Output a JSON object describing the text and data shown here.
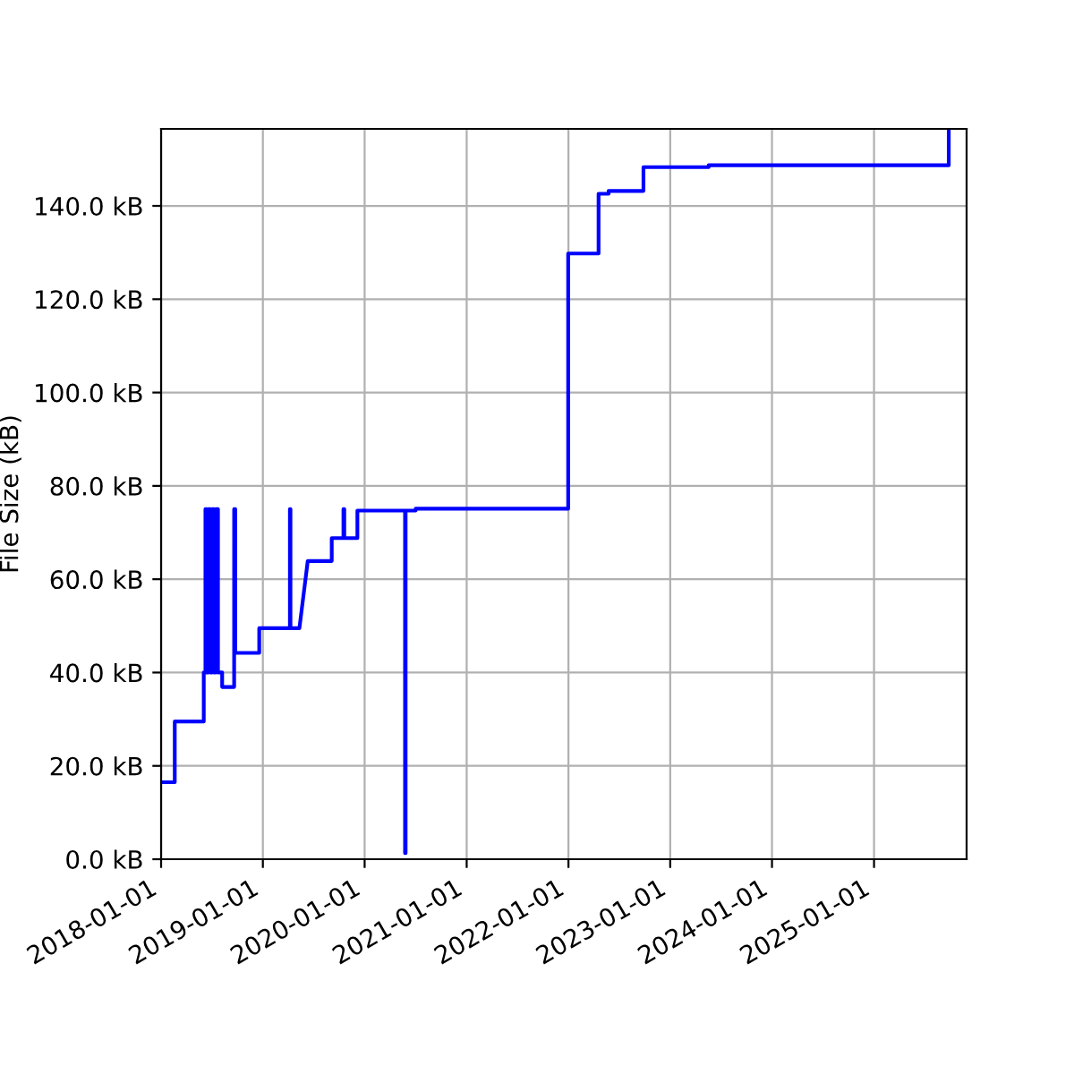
{
  "chart_data": {
    "type": "line",
    "ylabel": "File Size (kB)",
    "x": [
      "2018-01-01",
      "2018-02-19",
      "2018-02-19",
      "2018-06-03",
      "2018-06-03",
      "2018-06-09",
      "2018-06-09",
      "2018-06-14",
      "2018-06-14",
      "2018-06-20",
      "2018-06-20",
      "2018-06-27",
      "2018-06-27",
      "2018-07-03",
      "2018-07-03",
      "2018-07-10",
      "2018-07-10",
      "2018-07-16",
      "2018-07-16",
      "2018-07-24",
      "2018-07-24",
      "2018-08-08",
      "2018-08-08",
      "2018-09-20",
      "2018-09-20",
      "2018-09-24",
      "2018-09-24",
      "2018-12-19",
      "2018-12-19",
      "2019-04-08",
      "2019-04-08",
      "2019-04-10",
      "2019-04-10",
      "2019-05-12",
      "2019-06-11",
      "2019-09-05",
      "2019-09-05",
      "2019-10-17",
      "2019-10-17",
      "2019-10-20",
      "2019-10-20",
      "2019-12-06",
      "2019-12-06",
      "2020-05-25",
      "2020-05-25",
      "2020-05-27",
      "2020-05-27",
      "2020-07-02",
      "2020-07-02",
      "2021-12-31",
      "2021-12-31",
      "2022-04-19",
      "2022-04-19",
      "2022-05-25",
      "2022-05-25",
      "2022-09-27",
      "2022-09-27",
      "2023-05-19",
      "2023-05-19",
      "2025-09-26",
      "2025-09-26"
    ],
    "series": [
      {
        "color": "#0000ff",
        "values": [
          16.5,
          16.5,
          29.5,
          29.5,
          40,
          40,
          75,
          75,
          40,
          40,
          75,
          75,
          40,
          40,
          75,
          75,
          40,
          40,
          75,
          75,
          40,
          40,
          36.9,
          36.9,
          75,
          75,
          44.2,
          44.2,
          49.5,
          49.5,
          75,
          75,
          49.5,
          49.5,
          63.9,
          63.9,
          68.8,
          68.8,
          75,
          75,
          68.8,
          68.8,
          74.7,
          74.7,
          1.3,
          1.3,
          74.7,
          74.7,
          75.1,
          75.1,
          129.8,
          129.8,
          142.6,
          142.6,
          143.2,
          143.2,
          148.3,
          148.3,
          148.7,
          148.7,
          156.5
        ]
      }
    ],
    "xlim": [
      "2018-01-01",
      "2025-11-29"
    ],
    "ylim": [
      0,
      156.5
    ],
    "xticks": [
      {
        "value": "2018-01-01",
        "label": "2018-01-01"
      },
      {
        "value": "2019-01-01",
        "label": "2019-01-01"
      },
      {
        "value": "2020-01-01",
        "label": "2020-01-01"
      },
      {
        "value": "2021-01-01",
        "label": "2021-01-01"
      },
      {
        "value": "2022-01-01",
        "label": "2022-01-01"
      },
      {
        "value": "2023-01-01",
        "label": "2023-01-01"
      },
      {
        "value": "2024-01-01",
        "label": "2024-01-01"
      },
      {
        "value": "2025-01-01",
        "label": "2025-01-01"
      }
    ],
    "yticks": [
      {
        "value": 0,
        "label": "0.0 kB"
      },
      {
        "value": 20,
        "label": "20.0 kB"
      },
      {
        "value": 40,
        "label": "40.0 kB"
      },
      {
        "value": 60,
        "label": "60.0 kB"
      },
      {
        "value": 80,
        "label": "80.0 kB"
      },
      {
        "value": 100,
        "label": "100.0 kB"
      },
      {
        "value": 120,
        "label": "120.0 kB"
      },
      {
        "value": 140,
        "label": "140.0 kB"
      }
    ],
    "grid": true,
    "marker": "none",
    "line_style": "solid"
  }
}
